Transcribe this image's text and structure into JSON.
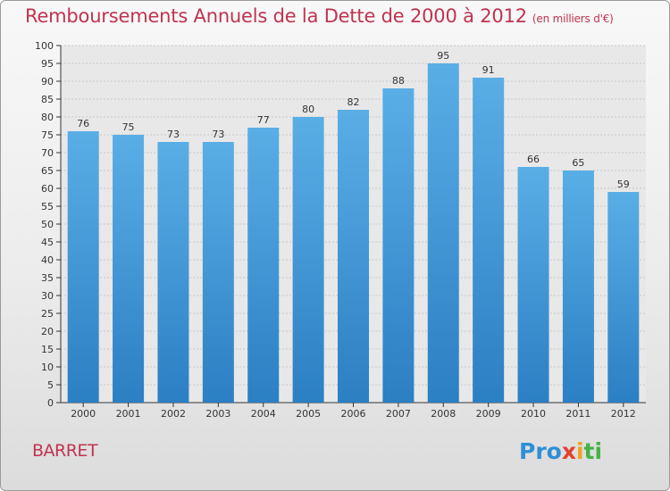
{
  "header": {
    "title": "Remboursements Annuels de la Dette de 2000 à 2012",
    "unit": "(en milliers d'€)"
  },
  "footer": {
    "place": "BARRET",
    "logo": {
      "p1": "Pro",
      "p2": "x",
      "p3": "i",
      "p4": "ti"
    }
  },
  "colors": {
    "title": "#c0334f",
    "bar_top": "#5aaee6",
    "bar_bottom": "#2b7fc3"
  },
  "chart_data": {
    "type": "bar",
    "title": "Remboursements Annuels de la Dette de 2000 à 2012",
    "subtitle": "(en milliers d'€)",
    "categories": [
      "2000",
      "2001",
      "2002",
      "2003",
      "2004",
      "2005",
      "2006",
      "2007",
      "2008",
      "2009",
      "2010",
      "2011",
      "2012"
    ],
    "values": [
      76,
      75,
      73,
      73,
      77,
      80,
      82,
      88,
      95,
      91,
      66,
      65,
      59
    ],
    "ylim": [
      0,
      100
    ],
    "ytick_step": 5,
    "grid": true,
    "legend": "none",
    "data_labels": true
  }
}
